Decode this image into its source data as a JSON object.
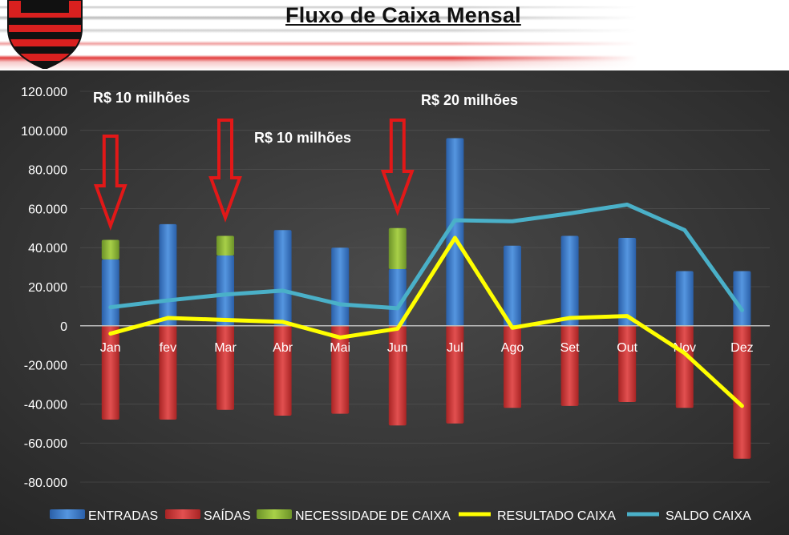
{
  "header": {
    "title": "Fluxo de Caixa Mensal"
  },
  "colors": {
    "entradas": "#3d7fcc",
    "saidas": "#d23a3a",
    "necessidade": "#8fb83a",
    "resultado": "#ffff00",
    "saldo": "#4ab0c8",
    "arrow": "#e21818",
    "background": "#3b3b3b"
  },
  "annotations": [
    {
      "id": "jan",
      "text": "R$ 10 milhões"
    },
    {
      "id": "mar",
      "text": "R$ 10 milhões"
    },
    {
      "id": "jun",
      "text": "R$ 20 milhões"
    }
  ],
  "chart_data": {
    "type": "bar",
    "categories": [
      "Jan",
      "fev",
      "Mar",
      "Abr",
      "Mai",
      "Jun",
      "Jul",
      "Ago",
      "Set",
      "Out",
      "Nov",
      "Dez"
    ],
    "ylim": [
      -80000,
      120000
    ],
    "yticks": [
      "120.000",
      "100.000",
      "80.000",
      "60.000",
      "40.000",
      "20.000",
      "0",
      "-20.000",
      "-40.000",
      "-60.000",
      "-80.000"
    ],
    "ytick_values": [
      120000,
      100000,
      80000,
      60000,
      40000,
      20000,
      0,
      -20000,
      -40000,
      -60000,
      -80000
    ],
    "legend_position": "bottom",
    "series": [
      {
        "name": "ENTRADAS",
        "type": "bar",
        "values": [
          34000,
          52000,
          36000,
          49000,
          40000,
          29000,
          96000,
          41000,
          46000,
          45000,
          28000,
          28000
        ]
      },
      {
        "name": "SAÍDAS",
        "type": "bar",
        "values": [
          -48000,
          -48000,
          -43000,
          -46000,
          -45000,
          -51000,
          -50000,
          -42000,
          -41000,
          -39000,
          -42000,
          -68000
        ]
      },
      {
        "name": "NECESSIDADE DE CAIXA",
        "type": "bar",
        "values": [
          10000,
          0,
          10000,
          0,
          0,
          21000,
          0,
          0,
          0,
          0,
          0,
          0
        ]
      },
      {
        "name": "RESULTADO CAIXA",
        "type": "line",
        "values": [
          -4000,
          4000,
          3000,
          2000,
          -6000,
          -1500,
          45000,
          -1000,
          4000,
          5000,
          -14000,
          -41000
        ]
      },
      {
        "name": "SALDO CAIXA",
        "type": "line",
        "values": [
          9500,
          13000,
          16000,
          18000,
          11000,
          9000,
          54000,
          53500,
          57500,
          62000,
          49000,
          8000
        ]
      }
    ]
  }
}
